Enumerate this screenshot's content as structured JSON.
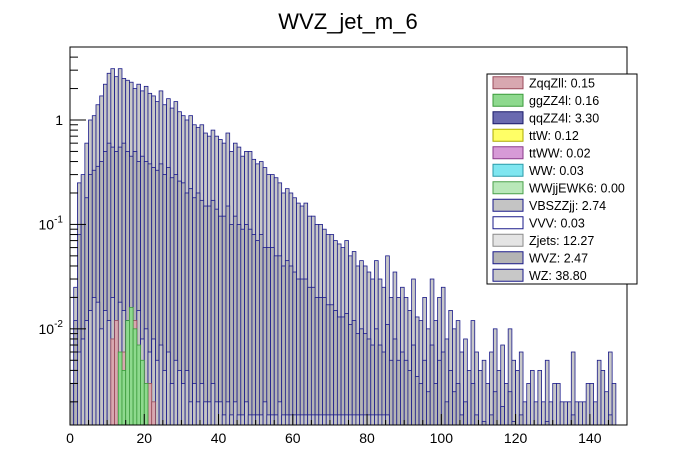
{
  "chart_data": {
    "type": "bar",
    "title": "WVZ_jet_m_6",
    "xlabel": "",
    "ylabel": "",
    "xlim": [
      0,
      150
    ],
    "ylim": [
      0.0012,
      5
    ],
    "ylog": true,
    "xticks": [
      0,
      20,
      40,
      60,
      80,
      100,
      120,
      140
    ],
    "yticks": [
      {
        "value": 0.01,
        "base": "10",
        "exp": "-2"
      },
      {
        "value": 0.1,
        "base": "10",
        "exp": "-1"
      },
      {
        "value": 1,
        "base": "1",
        "exp": ""
      }
    ],
    "bin_width": 1,
    "legend_position": "top-right",
    "legend": [
      {
        "name": "ZqqZll",
        "label": "ZqqZll: 0.15",
        "fill": "#d8a8b0",
        "stroke": "#9a4a5a"
      },
      {
        "name": "ggZZ4l",
        "label": "ggZZ4l: 0.16",
        "fill": "#8ed98e",
        "stroke": "#3a9a3a"
      },
      {
        "name": "qqZZ4l",
        "label": "qqZZ4l: 3.30",
        "fill": "#6a6ab0",
        "stroke": "#1a1a6a"
      },
      {
        "name": "ttW",
        "label": "ttW: 0.12",
        "fill": "#ffff66",
        "stroke": "#aaaa00"
      },
      {
        "name": "ttWW",
        "label": "ttWW: 0.02",
        "fill": "#d79ad7",
        "stroke": "#8a3a8a"
      },
      {
        "name": "WW",
        "label": "WW: 0.03",
        "fill": "#7fe6f0",
        "stroke": "#2a9aa8"
      },
      {
        "name": "WWjjEWK6",
        "label": "WWjjEWK6: 0.00",
        "fill": "#b9e8b9",
        "stroke": "#4aa04a"
      },
      {
        "name": "VBSZZjj",
        "label": "VBSZZjj: 2.74",
        "fill": "#c4c4c4",
        "stroke": "#1a1a8a"
      },
      {
        "name": "VVV",
        "label": "VVV: 0.03",
        "fill": "#ffffff",
        "stroke": "#1a1a8a"
      },
      {
        "name": "Zjets",
        "label": "Zjets: 12.27",
        "fill": "#e4e4e4",
        "stroke": "#8a8a8a"
      },
      {
        "name": "WVZ",
        "label": "WVZ: 2.47",
        "fill": "#b4b4b4",
        "stroke": "#1a1a8a"
      },
      {
        "name": "WZ",
        "label": "WZ: 38.80",
        "fill": "#c8c8c8",
        "stroke": "#1a1a8a"
      }
    ],
    "series": [
      {
        "name": "WZ",
        "description": "total stacked histogram (outer envelope)",
        "values": [
          0.003,
          0.025,
          0.25,
          0.3,
          0.6,
          1.0,
          1.1,
          1.4,
          1.7,
          2.2,
          2.8,
          3.1,
          2.6,
          3.1,
          2.5,
          2.4,
          2.3,
          2.0,
          2.2,
          1.9,
          2.1,
          1.8,
          1.7,
          1.5,
          1.9,
          1.4,
          1.6,
          1.3,
          1.5,
          1.2,
          1.1,
          1.0,
          1.1,
          0.9,
          0.85,
          0.9,
          0.75,
          0.7,
          0.8,
          0.7,
          0.65,
          0.6,
          0.75,
          0.5,
          0.6,
          0.55,
          0.45,
          0.5,
          0.5,
          0.42,
          0.38,
          0.4,
          0.35,
          0.3,
          0.3,
          0.28,
          0.25,
          0.2,
          0.22,
          0.2,
          0.18,
          0.16,
          0.15,
          0.16,
          0.12,
          0.12,
          0.1,
          0.1,
          0.09,
          0.08,
          0.08,
          0.07,
          0.065,
          0.06,
          0.07,
          0.05,
          0.055,
          0.04,
          0.045,
          0.04,
          0.035,
          0.03,
          0.045,
          0.03,
          0.025,
          0.05,
          0.02,
          0.035,
          0.02,
          0.025,
          0.02,
          0.015,
          0.03,
          0.013,
          0.012,
          0.02,
          0.01,
          0.03,
          0.012,
          0.02,
          0.025,
          0.008,
          0.015,
          0.01,
          0.012,
          0.006,
          0.008,
          0.004,
          0.012,
          0.006,
          0.004,
          0.005,
          0.003,
          0.006,
          0.01,
          0.004,
          0.007,
          0.003,
          0.01,
          0.005,
          0.004,
          0.006,
          0.002,
          0.003,
          0.004,
          0.002,
          0.004,
          0.002,
          0.005,
          0.002,
          0.003,
          0.003,
          0.002,
          0.002,
          0.002,
          0.006,
          0.002,
          0.002,
          0.002,
          0.003,
          0.003,
          0.002,
          0.005,
          0.004,
          0.0025,
          0.006,
          0.003,
          0,
          0,
          0
        ]
      },
      {
        "name": "WVZ",
        "description": "cumulative stack below WZ",
        "values": [
          0.002,
          0.012,
          0.08,
          0.1,
          0.18,
          0.3,
          0.33,
          0.36,
          0.4,
          0.5,
          0.6,
          0.55,
          0.5,
          0.55,
          0.6,
          0.5,
          0.45,
          0.5,
          0.4,
          0.45,
          0.4,
          0.38,
          0.35,
          0.33,
          0.38,
          0.3,
          0.35,
          0.28,
          0.3,
          0.26,
          0.25,
          0.2,
          0.22,
          0.18,
          0.2,
          0.17,
          0.15,
          0.15,
          0.17,
          0.14,
          0.12,
          0.12,
          0.15,
          0.1,
          0.12,
          0.1,
          0.09,
          0.1,
          0.09,
          0.08,
          0.07,
          0.08,
          0.06,
          0.06,
          0.06,
          0.05,
          0.05,
          0.04,
          0.045,
          0.04,
          0.035,
          0.03,
          0.03,
          0.03,
          0.025,
          0.025,
          0.02,
          0.02,
          0.02,
          0.017,
          0.017,
          0.015,
          0.013,
          0.013,
          0.014,
          0.011,
          0.012,
          0.009,
          0.01,
          0.009,
          0.008,
          0.007,
          0.01,
          0.007,
          0.006,
          0.011,
          0.005,
          0.008,
          0.005,
          0.006,
          0.005,
          0.004,
          0.007,
          0.0035,
          0.003,
          0.005,
          0.0025,
          0.007,
          0.003,
          0.005,
          0.006,
          0.002,
          0.004,
          0.0025,
          0.003,
          0.0015,
          0.002,
          0.001,
          0.003,
          0.0015,
          0.001,
          0.0013,
          0,
          0.0015,
          0.0025,
          0.001,
          0.0018,
          0,
          0.0025,
          0.0013,
          0.001,
          0.0015,
          0,
          0,
          0.001,
          0,
          0.001,
          0,
          0.0013,
          0,
          0,
          0,
          0,
          0,
          0,
          0.0015,
          0,
          0,
          0,
          0,
          0,
          0,
          0.0012,
          0.001,
          0,
          0.0015,
          0,
          0,
          0,
          0
        ]
      },
      {
        "name": "VBSZZjj",
        "description": "lowest visible stack layer",
        "values": [
          0,
          0.001,
          0.006,
          0.008,
          0.012,
          0.015,
          0.02,
          0.018,
          0.01,
          0.015,
          0.012,
          0.02,
          0.01,
          0.018,
          0.015,
          0.012,
          0.008,
          0.01,
          0.015,
          0.008,
          0.01,
          0.006,
          0.008,
          0.005,
          0.007,
          0.004,
          0.006,
          0.003,
          0.005,
          0.004,
          0.003,
          0.004,
          0.002,
          0.003,
          0.002,
          0.003,
          0.002,
          0.002,
          0.003,
          0.002,
          0.002,
          0.0015,
          0.002,
          0.0015,
          0.002,
          0.0015,
          0.0015,
          0.002,
          0.0015,
          0.0015,
          0.0015,
          0.0015,
          0.002,
          0.0015,
          0.0015,
          0.0015,
          0.002,
          0.0015,
          0.0015,
          0.0015,
          0.0015,
          0.0015,
          0.0015,
          0.0015,
          0.0015,
          0.0015,
          0.0015,
          0.0015,
          0.0015,
          0.0015,
          0.0015,
          0.0015,
          0.0015,
          0.0015,
          0.0015,
          0.0015,
          0.0015,
          0.0015,
          0.0015,
          0.0015,
          0.0015,
          0.0015,
          0.0015,
          0.0015,
          0.0015,
          0.0015,
          0,
          0,
          0,
          0,
          0,
          0,
          0,
          0,
          0,
          0,
          0,
          0,
          0,
          0,
          0,
          0,
          0,
          0,
          0,
          0,
          0,
          0,
          0,
          0,
          0,
          0,
          0,
          0,
          0,
          0,
          0,
          0,
          0,
          0,
          0,
          0,
          0,
          0,
          0,
          0,
          0,
          0,
          0,
          0,
          0,
          0,
          0,
          0,
          0,
          0,
          0,
          0,
          0,
          0,
          0,
          0,
          0,
          0,
          0,
          0,
          0,
          0,
          0,
          0
        ]
      },
      {
        "name": "ZqqZll",
        "description": "small peaks",
        "values": [
          0,
          0,
          0,
          0,
          0,
          0,
          0,
          0,
          0,
          0,
          0,
          0.008,
          0.012,
          0.004,
          0.006,
          0.01,
          0.008,
          0.012,
          0.005,
          0.004,
          0,
          0.003,
          0.002,
          0,
          0,
          0,
          0,
          0,
          0,
          0,
          0,
          0,
          0,
          0,
          0,
          0,
          0,
          0,
          0,
          0,
          0,
          0,
          0,
          0,
          0,
          0,
          0,
          0,
          0,
          0,
          0,
          0,
          0,
          0,
          0,
          0,
          0,
          0,
          0,
          0,
          0,
          0,
          0,
          0,
          0,
          0,
          0,
          0,
          0,
          0,
          0,
          0,
          0,
          0,
          0,
          0,
          0,
          0,
          0,
          0,
          0,
          0,
          0,
          0,
          0,
          0,
          0,
          0,
          0,
          0,
          0,
          0,
          0,
          0,
          0,
          0,
          0,
          0,
          0,
          0,
          0,
          0,
          0,
          0,
          0,
          0,
          0,
          0,
          0,
          0,
          0,
          0,
          0,
          0,
          0,
          0,
          0,
          0,
          0,
          0,
          0,
          0,
          0,
          0,
          0,
          0,
          0,
          0,
          0,
          0,
          0,
          0,
          0,
          0,
          0,
          0,
          0,
          0,
          0,
          0,
          0,
          0,
          0,
          0,
          0,
          0
        ]
      },
      {
        "name": "ggZZ4l",
        "description": "green peaks",
        "values": [
          0,
          0,
          0,
          0,
          0,
          0,
          0,
          0,
          0,
          0,
          0,
          0,
          0,
          0.006,
          0.004,
          0.012,
          0.016,
          0.01,
          0.007,
          0.005,
          0.003,
          0,
          0,
          0,
          0,
          0,
          0,
          0,
          0,
          0,
          0,
          0,
          0,
          0,
          0,
          0,
          0,
          0,
          0,
          0,
          0,
          0,
          0,
          0,
          0,
          0,
          0,
          0,
          0,
          0,
          0,
          0,
          0,
          0,
          0,
          0,
          0,
          0,
          0,
          0,
          0,
          0,
          0,
          0,
          0,
          0,
          0,
          0,
          0,
          0,
          0,
          0,
          0,
          0,
          0,
          0,
          0,
          0,
          0,
          0,
          0,
          0,
          0,
          0,
          0,
          0,
          0,
          0,
          0,
          0,
          0,
          0,
          0,
          0,
          0,
          0,
          0,
          0,
          0,
          0,
          0,
          0,
          0,
          0,
          0,
          0,
          0,
          0,
          0,
          0,
          0,
          0,
          0,
          0,
          0,
          0,
          0,
          0,
          0,
          0,
          0,
          0,
          0,
          0,
          0,
          0,
          0,
          0,
          0,
          0,
          0,
          0,
          0,
          0,
          0,
          0,
          0,
          0,
          0,
          0,
          0,
          0,
          0,
          0,
          0,
          0,
          0,
          0,
          0,
          0
        ]
      }
    ]
  }
}
